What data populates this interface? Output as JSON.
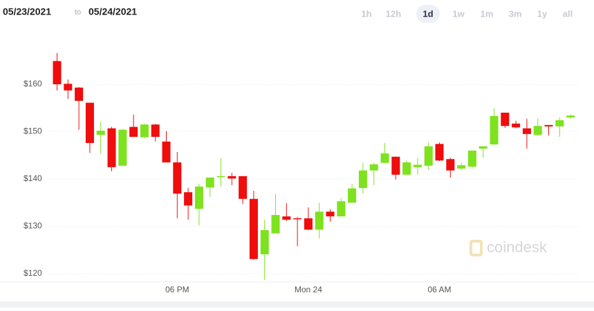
{
  "header": {
    "from": "05/23/2021",
    "to": "to",
    "until": "05/24/2021",
    "ranges": [
      "1h",
      "12h",
      "1d",
      "1w",
      "1m",
      "3m",
      "1y",
      "all"
    ],
    "active_range": 2
  },
  "watermark": "coindesk",
  "chart_data": {
    "type": "candlestick",
    "categories": [
      null,
      null,
      null,
      null,
      null,
      null,
      null,
      null,
      null,
      null,
      null,
      "06 PM",
      null,
      null,
      null,
      null,
      null,
      null,
      null,
      null,
      null,
      null,
      null,
      "Mon 24",
      null,
      null,
      null,
      null,
      null,
      null,
      null,
      null,
      null,
      null,
      null,
      "06 AM",
      null,
      null,
      null,
      null,
      null,
      null,
      null,
      null,
      null,
      null,
      null,
      null
    ],
    "open": [
      164.9,
      160.1,
      159.3,
      156.1,
      149.3,
      150.7,
      142.8,
      151.0,
      148.8,
      151.5,
      147.9,
      143.5,
      137.2,
      133.7,
      138.2,
      140.5,
      140.6,
      140.6,
      135.8,
      124.1,
      128.5,
      132.1,
      131.7,
      131.7,
      129.3,
      133.1,
      132.1,
      135.0,
      138.1,
      141.8,
      143.4,
      144.7,
      140.9,
      142.5,
      142.8,
      147.4,
      144.2,
      142.2,
      142.6,
      146.4,
      147.3,
      154.0,
      151.7,
      150.7,
      149.3,
      151.4,
      151.1,
      153.0
    ],
    "high": [
      166.6,
      161.0,
      159.4,
      156.1,
      152.1,
      151.0,
      150.6,
      153.6,
      151.7,
      151.6,
      150.1,
      145.7,
      138.1,
      139.0,
      140.3,
      144.4,
      141.3,
      140.6,
      137.5,
      131.4,
      136.8,
      134.9,
      132.0,
      134.0,
      135.0,
      133.6,
      135.9,
      139.0,
      143.4,
      143.4,
      147.6,
      144.7,
      143.9,
      144.5,
      147.7,
      147.7,
      144.5,
      143.4,
      146.0,
      146.9,
      154.9,
      154.0,
      152.3,
      152.7,
      152.8,
      151.4,
      153.0,
      153.6
    ],
    "low": [
      158.7,
      156.9,
      150.4,
      145.5,
      145.4,
      141.6,
      142.8,
      148.9,
      148.6,
      147.9,
      143.5,
      131.7,
      131.4,
      130.2,
      136.2,
      138.4,
      138.7,
      134.7,
      122.9,
      118.7,
      128.5,
      131.1,
      125.8,
      129.2,
      127.4,
      131.0,
      132.1,
      135.0,
      136.9,
      138.7,
      143.4,
      139.9,
      140.9,
      140.9,
      141.9,
      143.8,
      140.3,
      141.9,
      142.2,
      144.5,
      147.2,
      150.8,
      150.7,
      146.4,
      149.2,
      149.2,
      148.9,
      152.7
    ],
    "close": [
      160.0,
      158.7,
      156.5,
      147.6,
      150.2,
      142.5,
      150.4,
      148.9,
      151.5,
      148.9,
      143.5,
      136.9,
      134.4,
      138.4,
      140.3,
      140.6,
      140.1,
      135.8,
      123.1,
      129.2,
      132.4,
      131.4,
      131.6,
      129.3,
      133.1,
      132.1,
      135.3,
      138.0,
      141.8,
      143.1,
      145.4,
      140.9,
      143.5,
      143.0,
      146.9,
      143.9,
      141.8,
      142.9,
      146.0,
      146.9,
      153.3,
      151.2,
      150.9,
      149.5,
      151.2,
      151.1,
      152.4,
      153.4
    ],
    "up_color": "#7ee21e",
    "down_color": "#ef0d0d",
    "ylim": [
      118.25,
      170.5
    ],
    "yticks": [
      {
        "value": 120,
        "label": "$120"
      },
      {
        "value": 130,
        "label": "$130"
      },
      {
        "value": 140,
        "label": "$140"
      },
      {
        "value": 150,
        "label": "$150"
      },
      {
        "value": 160,
        "label": "$160"
      }
    ],
    "grid": true
  }
}
